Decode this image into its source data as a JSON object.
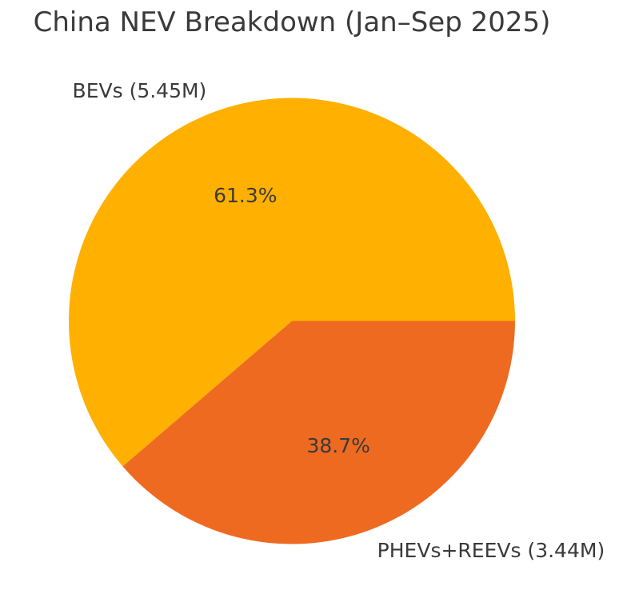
{
  "title": "China NEV Breakdown (Jan–Sep 2025)",
  "colors": {
    "background": "#ffffff",
    "text": "#3a3a3a",
    "slice_bevs": "#FFB000",
    "slice_phevs_reevs": "#EE6A20"
  },
  "chart_data": {
    "type": "pie",
    "title": "China NEV Breakdown (Jan–Sep 2025)",
    "start_angle_deg": 0,
    "direction": "counterclockwise",
    "legend": false,
    "labels_position": "outside",
    "percent_labels_position": "inside",
    "slices": [
      {
        "name": "BEVs",
        "label": "BEVs (5.45M)",
        "value_millions": 5.45,
        "pct": 61.3,
        "pct_label": "61.3%",
        "color": "#FFB000"
      },
      {
        "name": "PHEVs+REEVs",
        "label": "PHEVs+REEVs (3.44M)",
        "value_millions": 3.44,
        "pct": 38.7,
        "pct_label": "38.7%",
        "color": "#EE6A20"
      }
    ]
  }
}
